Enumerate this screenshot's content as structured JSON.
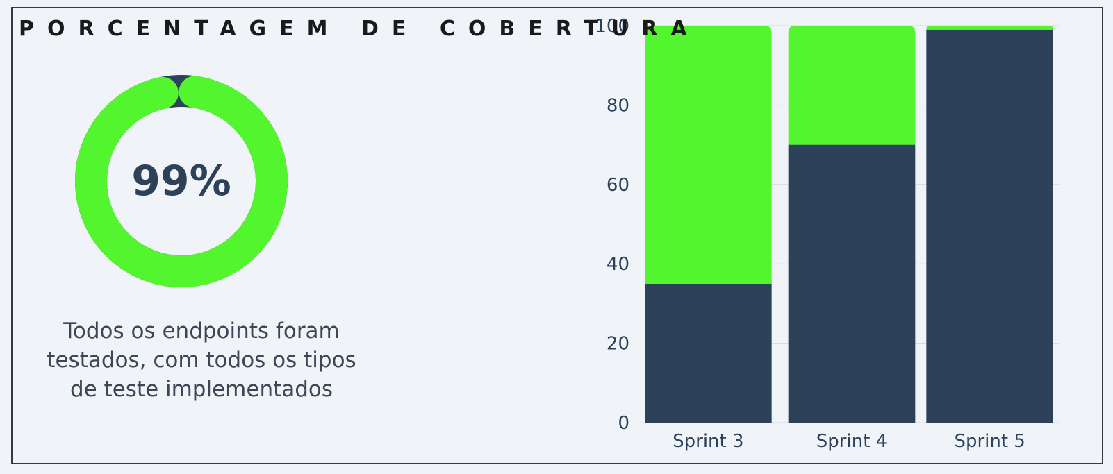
{
  "panel": {
    "title": "PORCENTAGEM DE COBERTURA",
    "donut": {
      "value": 99,
      "label": "99%",
      "fill_color": "#52f52e",
      "remainder_color": "#2d4159"
    },
    "caption_lines": [
      "Todos os endpoints foram",
      "testados, com todos os tipos",
      "de teste implementados"
    ]
  },
  "chart_data": {
    "type": "bar",
    "stacked": true,
    "categories": [
      "Sprint 3",
      "Sprint 4",
      "Sprint 5"
    ],
    "series": [
      {
        "values": [
          35,
          70,
          99
        ],
        "color": "#2d4159"
      },
      {
        "values": [
          65,
          30,
          1
        ],
        "color": "#52f52e"
      }
    ],
    "ylim": [
      0,
      100
    ],
    "yticks": [
      0,
      20,
      40,
      60,
      80,
      100
    ],
    "grid": true,
    "legend": "none"
  }
}
